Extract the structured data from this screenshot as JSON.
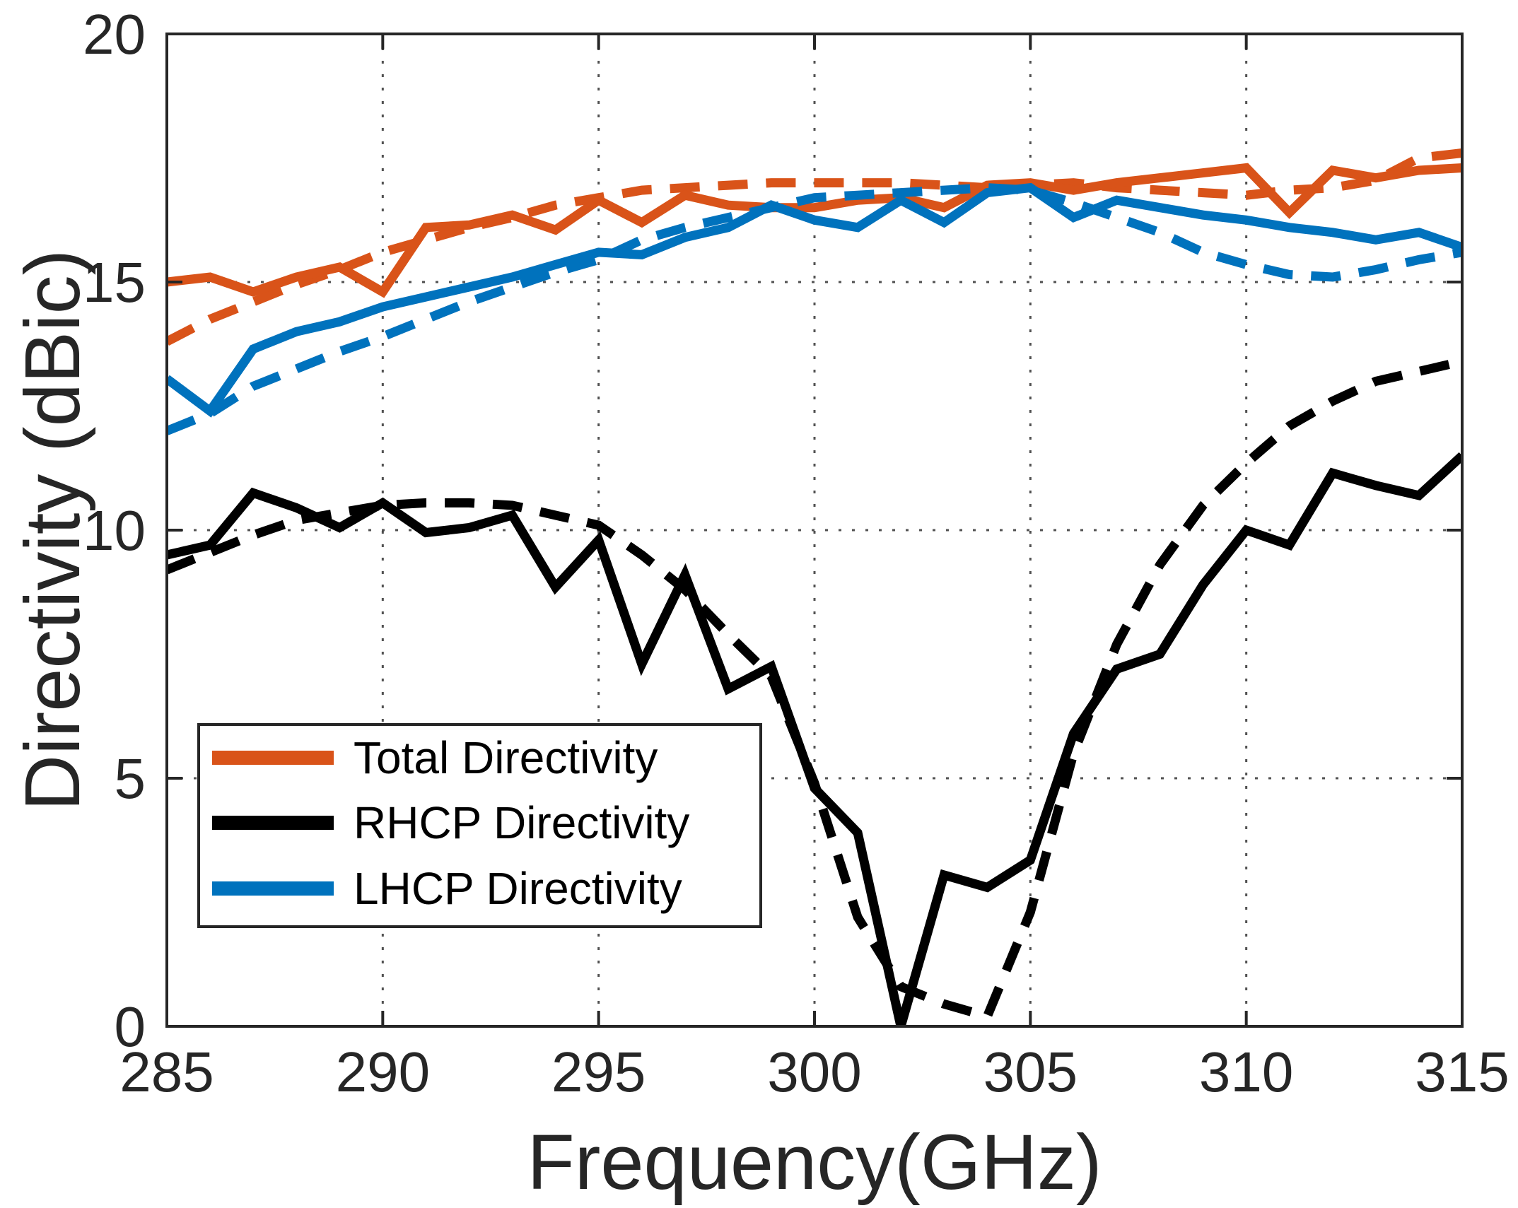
{
  "figure": {
    "background": "#ffffff",
    "axis_color": "#262626",
    "grid_color": "#333333"
  },
  "chart_data": {
    "type": "line",
    "title": "",
    "xlabel": "Frequency(GHz)",
    "ylabel": "Directivity (dBic)",
    "xlim": [
      285,
      315
    ],
    "ylim": [
      0,
      20
    ],
    "xticks": [
      285,
      290,
      295,
      300,
      305,
      310,
      315
    ],
    "yticks": [
      0,
      5,
      10,
      15,
      20
    ],
    "grid": true,
    "grid_style": "dotted",
    "legend_position": "lower-left",
    "x": [
      285,
      286,
      287,
      288,
      289,
      290,
      291,
      292,
      293,
      294,
      295,
      296,
      297,
      298,
      299,
      300,
      301,
      302,
      303,
      304,
      305,
      306,
      307,
      308,
      309,
      310,
      311,
      312,
      313,
      314,
      315
    ],
    "series": [
      {
        "name": "Total Directivity (dashed/simulated)",
        "color": "#D95319",
        "style": "dashed",
        "values": [
          13.8,
          14.25,
          14.6,
          14.95,
          15.25,
          15.6,
          15.85,
          16.1,
          16.3,
          16.55,
          16.7,
          16.85,
          16.9,
          16.95,
          17.0,
          17.0,
          17.0,
          17.0,
          16.95,
          16.9,
          16.95,
          17.0,
          16.9,
          16.85,
          16.8,
          16.75,
          16.85,
          16.9,
          17.05,
          17.5,
          17.6
        ]
      },
      {
        "name": "Total Directivity (solid/measured)",
        "color": "#D95319",
        "style": "solid",
        "values": [
          15.0,
          15.1,
          14.8,
          15.1,
          15.3,
          14.8,
          16.1,
          16.15,
          16.35,
          16.05,
          16.65,
          16.2,
          16.75,
          16.55,
          16.5,
          16.5,
          16.65,
          16.7,
          16.5,
          16.95,
          17.0,
          16.85,
          17.0,
          17.1,
          17.2,
          17.3,
          16.4,
          17.25,
          17.1,
          17.25,
          17.3
        ]
      },
      {
        "name": "LHCP Directivity (dashed/simulated)",
        "color": "#0072BD",
        "style": "dashed",
        "values": [
          12.0,
          12.35,
          12.9,
          13.25,
          13.6,
          13.9,
          14.25,
          14.6,
          14.9,
          15.2,
          15.45,
          15.85,
          16.1,
          16.3,
          16.5,
          16.7,
          16.75,
          16.8,
          16.85,
          16.9,
          16.85,
          16.6,
          16.3,
          16.0,
          15.6,
          15.35,
          15.15,
          15.1,
          15.25,
          15.45,
          15.6
        ]
      },
      {
        "name": "LHCP Directivity (solid/measured)",
        "color": "#0072BD",
        "style": "solid",
        "values": [
          13.05,
          12.4,
          13.65,
          14.0,
          14.2,
          14.5,
          14.7,
          14.9,
          15.1,
          15.35,
          15.6,
          15.55,
          15.9,
          16.1,
          16.55,
          16.25,
          16.1,
          16.65,
          16.2,
          16.8,
          16.9,
          16.3,
          16.65,
          16.5,
          16.35,
          16.25,
          16.1,
          16.0,
          15.85,
          16.0,
          15.7
        ]
      },
      {
        "name": "RHCP Directivity (solid/measured)",
        "color": "#000000",
        "style": "solid",
        "values": [
          9.5,
          9.7,
          10.75,
          10.45,
          10.05,
          10.55,
          9.95,
          10.05,
          10.3,
          8.85,
          9.8,
          7.3,
          9.1,
          6.8,
          7.25,
          4.8,
          3.9,
          0.0,
          3.05,
          2.8,
          3.35,
          5.9,
          7.2,
          7.5,
          8.9,
          10.0,
          9.7,
          11.15,
          10.9,
          10.7,
          11.5
        ]
      },
      {
        "name": "RHCP Directivity (dashed/simulated)",
        "color": "#000000",
        "style": "dashed",
        "values": [
          9.2,
          9.55,
          9.9,
          10.2,
          10.35,
          10.5,
          10.55,
          10.55,
          10.5,
          10.3,
          10.1,
          9.5,
          8.8,
          7.9,
          7.05,
          4.9,
          2.2,
          0.8,
          0.45,
          0.2,
          2.3,
          5.5,
          7.7,
          9.3,
          10.5,
          11.35,
          12.1,
          12.6,
          13.0,
          13.2,
          13.4
        ]
      }
    ],
    "legend": [
      {
        "label": "Total Directivity",
        "color": "#D95319"
      },
      {
        "label": "RHCP Directivity",
        "color": "#000000"
      },
      {
        "label": "LHCP Directivity",
        "color": "#0072BD"
      }
    ]
  }
}
